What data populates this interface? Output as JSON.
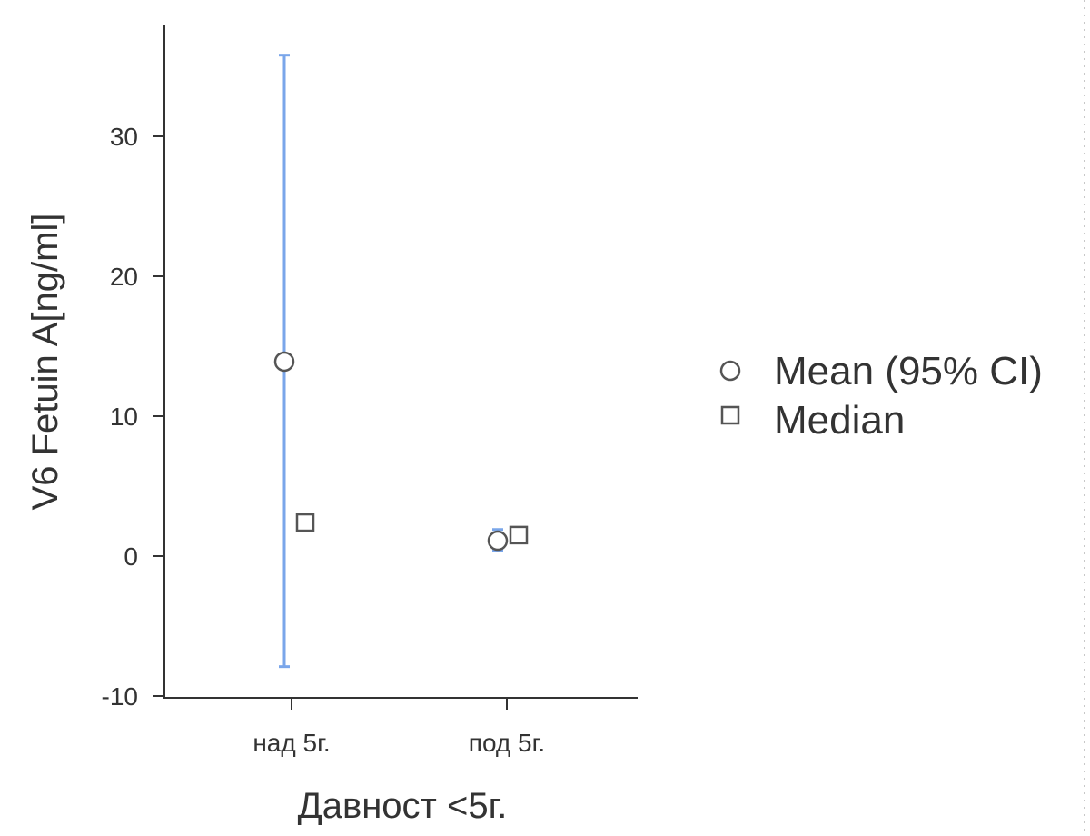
{
  "chart_data": {
    "type": "scatter",
    "categories": [
      "над 5г.",
      "под 5г."
    ],
    "xlabel": "Давност <5г.",
    "ylabel": "V6 Fetuin A[ng/ml]",
    "ylim": [
      -10,
      38
    ],
    "yticks": [
      -10,
      0,
      10,
      20,
      30
    ],
    "grid": false,
    "legend": {
      "placement": "right",
      "entries": [
        {
          "label": "Mean (95% CI)",
          "marker": "circle"
        },
        {
          "label": "Median",
          "marker": "square"
        }
      ]
    },
    "series": [
      {
        "name": "Mean (95% CI)",
        "values": [
          13.9,
          1.1
        ],
        "ci_lower": [
          -7.9,
          0.4
        ],
        "ci_upper": [
          35.8,
          1.9
        ]
      },
      {
        "name": "Median",
        "values": [
          2.4,
          1.5
        ]
      }
    ],
    "colors": {
      "ci": "#7aa6ea",
      "marker_stroke": "#555555",
      "axis": "#333333"
    }
  }
}
